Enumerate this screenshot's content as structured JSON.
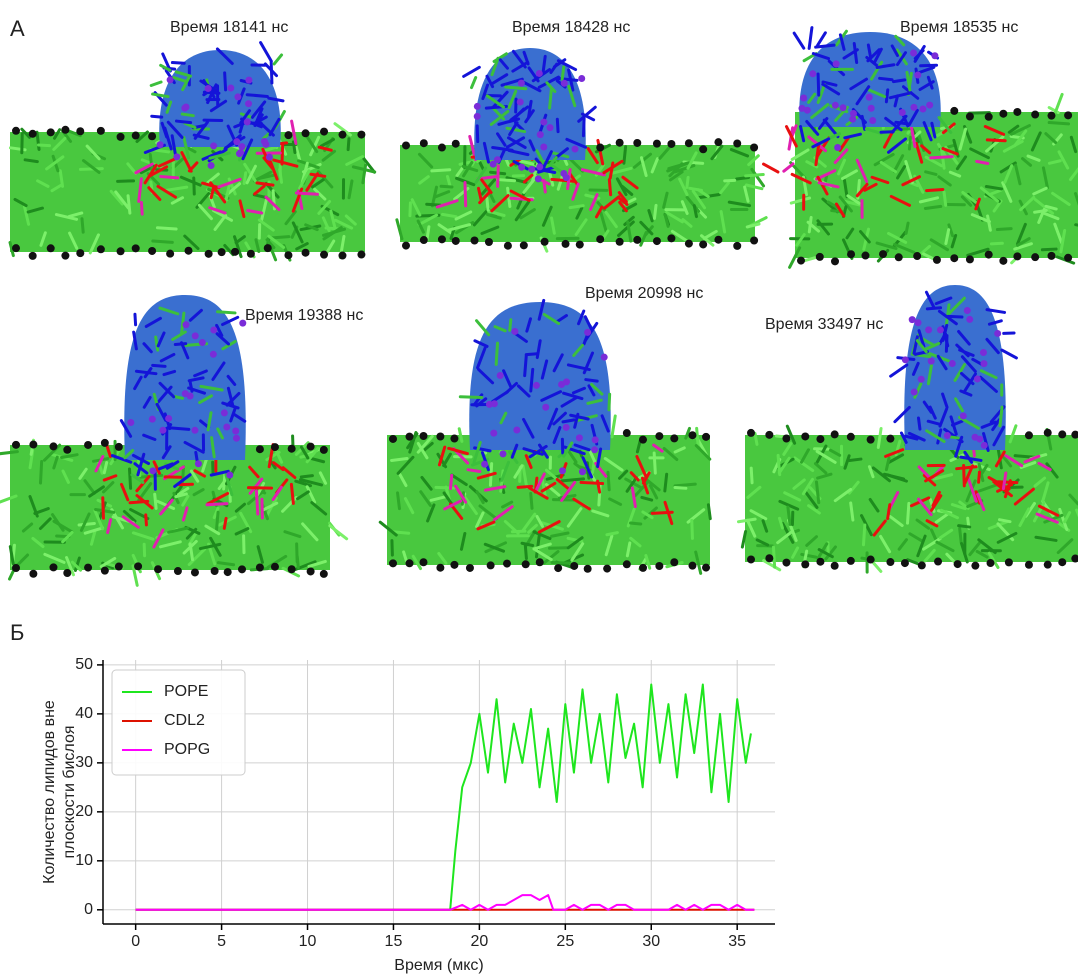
{
  "panel_labels": [
    "А",
    "Б"
  ],
  "snapshots": [
    {
      "caption": "Время 18141 нс"
    },
    {
      "caption": "Время 18428 нс"
    },
    {
      "caption": "Время 18535 нс"
    },
    {
      "caption": "Время 19388 нс"
    },
    {
      "caption": "Время 20998 нс"
    },
    {
      "caption": "Время 33497 нс"
    }
  ],
  "chart_data": {
    "type": "line",
    "xlabel": "Время (мкс)",
    "ylabel": [
      "Количество липидов вне",
      "плоскости бислоя"
    ],
    "xlim": [
      -1.9,
      37.2
    ],
    "ylim": [
      -2.9,
      51
    ],
    "xticks": [
      0,
      5,
      10,
      15,
      20,
      25,
      30,
      35
    ],
    "yticks": [
      0,
      10,
      20,
      30,
      40,
      50
    ],
    "grid": true,
    "legend": "upper-left",
    "series": [
      {
        "name": "POPE",
        "color": "#1ee61e",
        "x": [
          0,
          5,
          10,
          15,
          18.3,
          18.6,
          19,
          19.5,
          20,
          20.5,
          21,
          21.5,
          22,
          22.5,
          23,
          23.5,
          24,
          24.5,
          25,
          25.5,
          26,
          26.5,
          27,
          27.5,
          28,
          28.5,
          29,
          29.5,
          30,
          30.5,
          31,
          31.5,
          32,
          32.5,
          33,
          33.5,
          34,
          34.5,
          35,
          35.5,
          35.8
        ],
        "values": [
          0,
          0,
          0,
          0,
          0,
          12,
          25,
          30,
          40,
          28,
          43,
          26,
          38,
          30,
          41,
          25,
          37,
          22,
          42,
          28,
          45,
          30,
          40,
          26,
          44,
          31,
          38,
          25,
          46,
          30,
          42,
          27,
          44,
          32,
          46,
          24,
          40,
          22,
          43,
          30,
          36
        ]
      },
      {
        "name": "CDL2",
        "color": "#dd1100",
        "x": [
          0,
          36
        ],
        "values": [
          0,
          0
        ]
      },
      {
        "name": "POPG",
        "color": "#ff00ff",
        "x": [
          0,
          18.3,
          19,
          19.5,
          20,
          20.5,
          21,
          21.5,
          22,
          22.5,
          23,
          23.5,
          24,
          24.3,
          25,
          25.5,
          26,
          26.5,
          27,
          27.5,
          28,
          28.5,
          29,
          30,
          31,
          31.5,
          32,
          32.5,
          33,
          33.5,
          34,
          34.5,
          35,
          35.5,
          36
        ],
        "values": [
          0,
          0,
          1,
          0,
          1,
          0,
          1,
          1,
          2,
          3,
          3,
          2,
          3,
          0,
          0,
          1,
          0,
          1,
          1,
          0,
          1,
          1,
          0,
          0,
          0,
          1,
          0,
          1,
          0,
          1,
          1,
          0,
          1,
          0,
          0
        ]
      }
    ]
  }
}
